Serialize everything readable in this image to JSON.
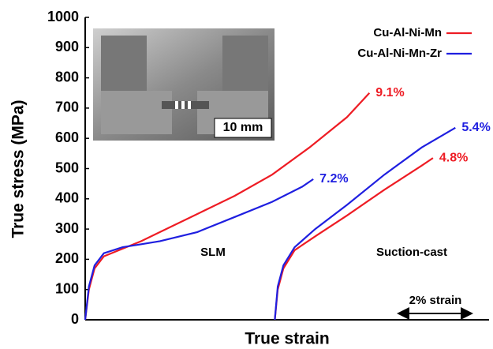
{
  "chart_data": {
    "type": "line",
    "xlabel": "True strain",
    "ylabel": "True stress (MPa)",
    "ylim": [
      0,
      1000
    ],
    "yticks": [
      0,
      100,
      200,
      300,
      400,
      500,
      600,
      700,
      800,
      900,
      1000
    ],
    "xlim": [
      0,
      10.8
    ],
    "groups": [
      "SLM",
      "Suction-cast"
    ],
    "inset_label": "10 mm",
    "scale_bar": "2% strain",
    "legend": "upper right",
    "series": [
      {
        "name": "Cu-Al-Ni-Mn",
        "color": "#ee1c24",
        "curves": [
          {
            "x": [
              0,
              0.1,
              0.25,
              0.5,
              1,
              1.5,
              2,
              3,
              4,
              5,
              6,
              7,
              7.6
            ],
            "values": [
              0,
              100,
              170,
              210,
              235,
              260,
              290,
              350,
              410,
              480,
              570,
              670,
              750
            ],
            "end_label": "9.1%"
          },
          {
            "x": [
              5.07,
              5.15,
              5.3,
              5.6,
              6.2,
              7,
              8,
              9,
              9.3
            ],
            "values": [
              0,
              100,
              170,
              230,
              280,
              345,
              430,
              510,
              535
            ],
            "end_label": "4.8%"
          }
        ]
      },
      {
        "name": "Cu-Al-Ni-Mn-Zr",
        "color": "#1f1fe0",
        "curves": [
          {
            "x": [
              0,
              0.1,
              0.25,
              0.5,
              1,
              1.5,
              2,
              3,
              4,
              5,
              5.8,
              6.1
            ],
            "values": [
              0,
              110,
              180,
              220,
              240,
              250,
              260,
              290,
              340,
              390,
              440,
              465
            ],
            "end_label": "7.2%"
          },
          {
            "x": [
              5.07,
              5.15,
              5.3,
              5.6,
              6.15,
              7,
              8,
              9,
              9.9
            ],
            "values": [
              0,
              110,
              180,
              240,
              300,
              380,
              480,
              570,
              635
            ],
            "end_label": "5.4%"
          }
        ]
      }
    ]
  }
}
